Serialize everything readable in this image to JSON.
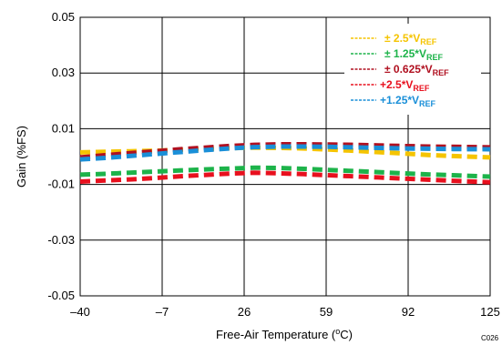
{
  "chart_data": {
    "type": "line",
    "xlabel": "Free-Air Temperature (",
    "xlabel_sup": "o",
    "xlabel_tail": "C)",
    "ylabel": "Gain (%FS)",
    "code": "C026",
    "xlim": [
      -40,
      125
    ],
    "ylim": [
      -0.05,
      0.05
    ],
    "x_ticks": [
      -40,
      -7,
      26,
      59,
      92,
      125
    ],
    "x_tick_labels": [
      "–40",
      "–7",
      "26",
      "59",
      "92",
      "125"
    ],
    "y_ticks": [
      0.05,
      0.03,
      0.01,
      -0.01,
      -0.03,
      -0.05
    ],
    "y_tick_labels": [
      "0.05",
      "0.03",
      "0.01",
      "-0.01",
      "-0.03",
      "-0.05"
    ],
    "grid": true,
    "legend_placement": "top-right",
    "x": [
      -40,
      -30,
      -20,
      -10,
      0,
      10,
      20,
      30,
      40,
      50,
      60,
      70,
      80,
      90,
      100,
      110,
      125
    ],
    "series": [
      {
        "name_prefix": "± 2.5*V",
        "name_sub": "REF",
        "color": "#f5c400",
        "values": [
          0.0015,
          0.0017,
          0.0019,
          0.0021,
          0.0024,
          0.0027,
          0.003,
          0.0032,
          0.0031,
          0.0029,
          0.0025,
          0.0021,
          0.0016,
          0.0011,
          0.0006,
          0.0002,
          -0.0003
        ]
      },
      {
        "name_prefix": "± 1.25*V",
        "name_sub": "REF",
        "color": "#1db34a",
        "values": [
          -0.0065,
          -0.0062,
          -0.0058,
          -0.0054,
          -0.005,
          -0.0046,
          -0.0043,
          -0.004,
          -0.0041,
          -0.0044,
          -0.0048,
          -0.0052,
          -0.0056,
          -0.006,
          -0.0064,
          -0.0067,
          -0.0072
        ]
      },
      {
        "name_prefix": "± 0.625*V",
        "name_sub": "REF",
        "color": "#b01020",
        "values": [
          -0.0003,
          0.0005,
          0.0012,
          0.0019,
          0.0026,
          0.0032,
          0.0038,
          0.0042,
          0.0044,
          0.0044,
          0.0043,
          0.0042,
          0.004,
          0.0038,
          0.0036,
          0.0035,
          0.0033
        ]
      },
      {
        "name_prefix": "+2.5*V",
        "name_sub": "REF",
        "color": "#e8101e",
        "values": [
          -0.009,
          -0.0086,
          -0.0082,
          -0.0077,
          -0.0071,
          -0.0066,
          -0.0061,
          -0.0058,
          -0.006,
          -0.0063,
          -0.0067,
          -0.0071,
          -0.0075,
          -0.0079,
          -0.0083,
          -0.0087,
          -0.0092
        ]
      },
      {
        "name_prefix": "+1.25*V",
        "name_sub": "REF",
        "color": "#1a8fd8",
        "values": [
          -0.001,
          -0.0005,
          0.0002,
          0.0009,
          0.0016,
          0.0023,
          0.0029,
          0.0034,
          0.0036,
          0.0036,
          0.0035,
          0.0033,
          0.0031,
          0.0029,
          0.0028,
          0.0027,
          0.0026
        ]
      }
    ]
  }
}
